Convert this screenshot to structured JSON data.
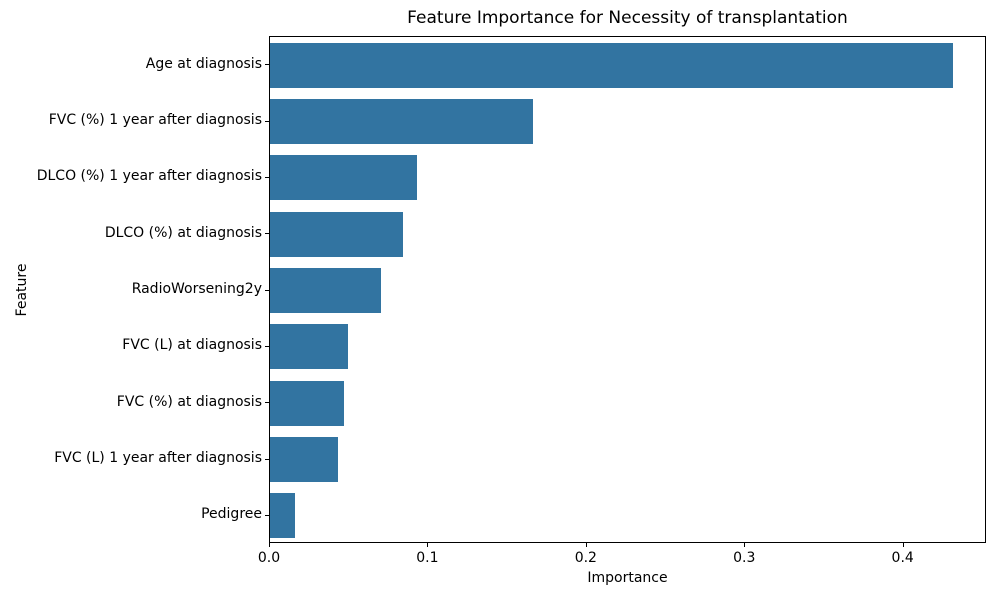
{
  "chart_data": {
    "type": "bar",
    "orientation": "horizontal",
    "title": "Feature Importance for Necessity of transplantation",
    "xlabel": "Importance",
    "ylabel": "Feature",
    "categories": [
      "Age at diagnosis",
      "FVC (%) 1 year after diagnosis",
      "DLCO (%) 1 year after diagnosis",
      "DLCO (%) at diagnosis",
      "RadioWorsening2y",
      "FVC (L) at diagnosis",
      "FVC (%) at diagnosis",
      "FVC (L) 1 year after diagnosis",
      "Pedigree"
    ],
    "values": [
      0.431,
      0.166,
      0.093,
      0.084,
      0.07,
      0.049,
      0.047,
      0.043,
      0.016
    ],
    "xlim": [
      0,
      0.4526
    ],
    "xticks": [
      0.0,
      0.1,
      0.2,
      0.3,
      0.4
    ],
    "xtick_labels": [
      "0.0",
      "0.1",
      "0.2",
      "0.3",
      "0.4"
    ],
    "bar_color": "#3274A1",
    "grid": false,
    "background_color": "#ffffff"
  }
}
